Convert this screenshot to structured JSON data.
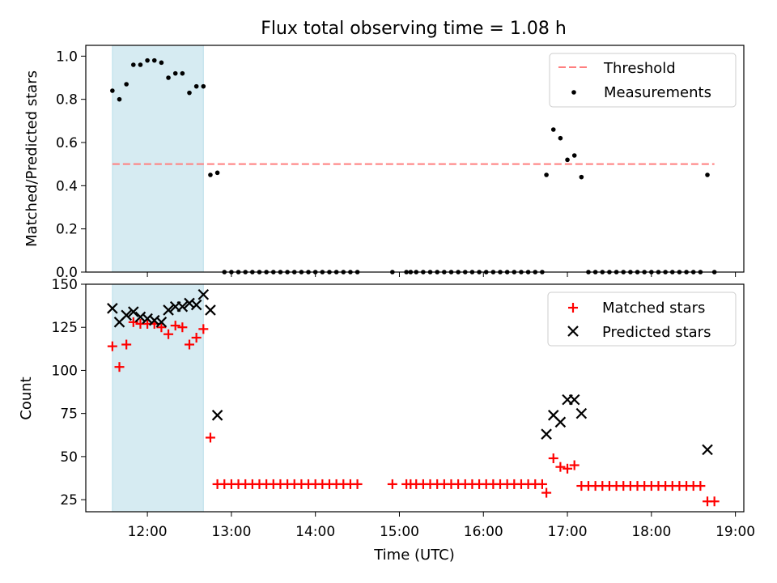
{
  "title": "Flux total observing time = 1.08 h",
  "chart_data": [
    {
      "type": "scatter",
      "ylabel": "Matched/Predicted stars",
      "ylim": [
        0,
        1.05
      ],
      "yticks": [
        0.0,
        0.2,
        0.4,
        0.6,
        0.8,
        1.0
      ],
      "ytick_labels": [
        "0.0",
        "0.2",
        "0.4",
        "0.6",
        "0.8",
        "1.0"
      ],
      "xlim": [
        "11:16",
        "19:06"
      ],
      "legend_position": "top-right",
      "highlight_span": {
        "start": "11:35",
        "end": "12:40",
        "color": "#add8e6"
      },
      "threshold": {
        "name": "Threshold",
        "value": 0.5,
        "x_start": "11:35",
        "x_end": "18:45",
        "color": "#ff7f7f",
        "style": "dashed"
      },
      "series": [
        {
          "name": "Measurements",
          "marker": "dot",
          "color": "#000000",
          "x": [
            "11:35",
            "11:40",
            "11:45",
            "11:50",
            "11:55",
            "12:00",
            "12:05",
            "12:10",
            "12:15",
            "12:20",
            "12:25",
            "12:30",
            "12:35",
            "12:40",
            "12:45",
            "12:50",
            "12:55",
            "13:00",
            "13:05",
            "13:10",
            "13:15",
            "13:20",
            "13:25",
            "13:30",
            "13:35",
            "13:40",
            "13:45",
            "13:50",
            "13:55",
            "14:00",
            "14:05",
            "14:10",
            "14:15",
            "14:20",
            "14:25",
            "14:30",
            "14:55",
            "15:05",
            "15:08",
            "15:12",
            "15:17",
            "15:22",
            "15:27",
            "15:32",
            "15:37",
            "15:42",
            "15:47",
            "15:52",
            "15:57",
            "16:02",
            "16:07",
            "16:12",
            "16:17",
            "16:22",
            "16:27",
            "16:32",
            "16:37",
            "16:42",
            "16:45",
            "16:50",
            "16:55",
            "17:00",
            "17:05",
            "17:10",
            "17:15",
            "17:20",
            "17:25",
            "17:30",
            "17:35",
            "17:40",
            "17:45",
            "17:50",
            "17:55",
            "18:00",
            "18:05",
            "18:10",
            "18:15",
            "18:20",
            "18:25",
            "18:30",
            "18:35",
            "18:40",
            "18:45"
          ],
          "y": [
            0.84,
            0.8,
            0.87,
            0.96,
            0.96,
            0.98,
            0.98,
            0.97,
            0.9,
            0.92,
            0.92,
            0.83,
            0.86,
            0.86,
            0.45,
            0.46,
            0,
            0,
            0,
            0,
            0,
            0,
            0,
            0,
            0,
            0,
            0,
            0,
            0,
            0,
            0,
            0,
            0,
            0,
            0,
            0,
            0,
            0,
            0,
            0,
            0,
            0,
            0,
            0,
            0,
            0,
            0,
            0,
            0,
            0,
            0,
            0,
            0,
            0,
            0,
            0,
            0,
            0,
            0.45,
            0.66,
            0.62,
            0.52,
            0.54,
            0.44,
            0,
            0,
            0,
            0,
            0,
            0,
            0,
            0,
            0,
            0,
            0,
            0,
            0,
            0,
            0,
            0,
            0,
            0.45,
            0
          ]
        }
      ]
    },
    {
      "type": "scatter",
      "xlabel": "Time (UTC)",
      "ylabel": "Count",
      "ylim": [
        18,
        150
      ],
      "yticks": [
        25,
        50,
        75,
        100,
        125,
        150
      ],
      "ytick_labels": [
        "25",
        "50",
        "75",
        "100",
        "125",
        "150"
      ],
      "xlim": [
        "11:16",
        "19:06"
      ],
      "xticks": [
        "12:00",
        "13:00",
        "14:00",
        "15:00",
        "16:00",
        "17:00",
        "18:00",
        "19:00"
      ],
      "xtick_labels": [
        "12:00",
        "13:00",
        "14:00",
        "15:00",
        "16:00",
        "17:00",
        "18:00",
        "19:00"
      ],
      "legend_position": "top-right",
      "highlight_span": {
        "start": "11:35",
        "end": "12:40",
        "color": "#add8e6"
      },
      "series": [
        {
          "name": "Matched stars",
          "marker": "plus",
          "color": "#ff0000",
          "x": [
            "11:35",
            "11:40",
            "11:45",
            "11:50",
            "11:55",
            "12:00",
            "12:05",
            "12:10",
            "12:15",
            "12:20",
            "12:25",
            "12:30",
            "12:35",
            "12:40",
            "12:45",
            "12:50",
            "12:55",
            "13:00",
            "13:05",
            "13:10",
            "13:15",
            "13:20",
            "13:25",
            "13:30",
            "13:35",
            "13:40",
            "13:45",
            "13:50",
            "13:55",
            "14:00",
            "14:05",
            "14:10",
            "14:15",
            "14:20",
            "14:25",
            "14:30",
            "14:55",
            "15:05",
            "15:08",
            "15:12",
            "15:17",
            "15:22",
            "15:27",
            "15:32",
            "15:37",
            "15:42",
            "15:47",
            "15:52",
            "15:57",
            "16:02",
            "16:07",
            "16:12",
            "16:17",
            "16:22",
            "16:27",
            "16:32",
            "16:37",
            "16:42",
            "16:45",
            "16:50",
            "16:55",
            "17:00",
            "17:05",
            "17:10",
            "17:15",
            "17:20",
            "17:25",
            "17:30",
            "17:35",
            "17:40",
            "17:45",
            "17:50",
            "17:55",
            "18:00",
            "18:05",
            "18:10",
            "18:15",
            "18:20",
            "18:25",
            "18:30",
            "18:35",
            "18:40",
            "18:45"
          ],
          "y": [
            114,
            102,
            115,
            128,
            127,
            127,
            127,
            125,
            121,
            126,
            125,
            115,
            119,
            124,
            61,
            34,
            34,
            34,
            34,
            34,
            34,
            34,
            34,
            34,
            34,
            34,
            34,
            34,
            34,
            34,
            34,
            34,
            34,
            34,
            34,
            34,
            34,
            34,
            34,
            34,
            34,
            34,
            34,
            34,
            34,
            34,
            34,
            34,
            34,
            34,
            34,
            34,
            34,
            34,
            34,
            34,
            34,
            34,
            29,
            49,
            44,
            43,
            45,
            33,
            33,
            33,
            33,
            33,
            33,
            33,
            33,
            33,
            33,
            33,
            33,
            33,
            33,
            33,
            33,
            33,
            33,
            24,
            24
          ]
        },
        {
          "name": "Predicted stars",
          "marker": "x",
          "color": "#000000",
          "x": [
            "11:35",
            "11:40",
            "11:45",
            "11:50",
            "11:55",
            "12:00",
            "12:05",
            "12:10",
            "12:15",
            "12:20",
            "12:25",
            "12:30",
            "12:35",
            "12:40",
            "12:45",
            "12:50",
            "16:45",
            "16:50",
            "16:55",
            "17:00",
            "17:05",
            "17:10",
            "18:40"
          ],
          "y": [
            136,
            128,
            132,
            134,
            131,
            130,
            129,
            128,
            135,
            137,
            137,
            139,
            138,
            144,
            135,
            74,
            63,
            74,
            70,
            83,
            83,
            75,
            54
          ]
        }
      ]
    }
  ]
}
